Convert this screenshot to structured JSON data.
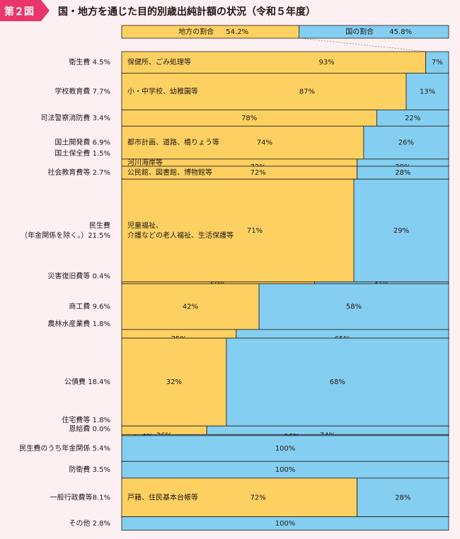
{
  "header": {
    "badge": "第２図",
    "title": "国・地方を通じた目的別歳出純計額の状況（令和５年度）"
  },
  "colors": {
    "local": "#fcd162",
    "national": "#84cff1",
    "badge": "#e8366a",
    "background": "#fdf0f3",
    "border": "#231815"
  },
  "chart_data": {
    "type": "bar",
    "subtype": "mekko (variable-width 100% stacked bar)",
    "title": "国・地方を通じた目的別歳出純計額の状況（令和５年度）",
    "overall": {
      "local_label": "地方の割合",
      "local_share": "54.2%",
      "national_label": "国の割合",
      "national_share": "45.8%"
    },
    "series": [
      {
        "name": "地方",
        "color": "#fcd162"
      },
      {
        "name": "国",
        "color": "#84cff1"
      }
    ],
    "categories": [
      {
        "label": "衛生費 4.5%",
        "share_pct": 4.5,
        "local_pct": 93,
        "national_pct": 7,
        "note": "保健所、ごみ処理等",
        "local_text": "93%",
        "national_text": "7%"
      },
      {
        "label": "学校教育費 7.7%",
        "share_pct": 7.7,
        "local_pct": 87,
        "national_pct": 13,
        "note": "小・中学校、幼稚園等",
        "local_text": "87%",
        "national_text": "13%"
      },
      {
        "label": "司法警察消防費 3.4%",
        "share_pct": 3.4,
        "local_pct": 78,
        "national_pct": 22,
        "note": "",
        "local_text": "78%",
        "national_text": "22%"
      },
      {
        "label": "国土開発費 6.9%",
        "share_pct": 6.9,
        "local_pct": 74,
        "national_pct": 26,
        "note": "都市計画、道路、橋りょう等",
        "local_text": "74%",
        "national_text": "26%"
      },
      {
        "label": "国土保全費 1.5%",
        "share_pct": 1.5,
        "local_pct": 72,
        "national_pct": 28,
        "note": "河川海岸等",
        "local_text": "72%",
        "national_text": "28%"
      },
      {
        "label": "社会教育費等 2.7%",
        "share_pct": 2.7,
        "local_pct": 72,
        "national_pct": 28,
        "note": "公民館、図書館、博物館等",
        "local_text": "72%",
        "national_text": "28%"
      },
      {
        "label": "民生費",
        "label2": "（年金関係を除く。）21.5%",
        "share_pct": 21.5,
        "local_pct": 71,
        "national_pct": 29,
        "note": "児童福祉、",
        "note2": "介護などの老人福祉、生活保護等",
        "local_text": "71%",
        "national_text": "29%"
      },
      {
        "label": "災害復旧費等 0.4%",
        "share_pct": 0.4,
        "local_pct": 59,
        "national_pct": 41,
        "note": "",
        "local_text": "59%",
        "national_text": "41%"
      },
      {
        "label": "商工費 9.6%",
        "share_pct": 9.6,
        "local_pct": 42,
        "national_pct": 58,
        "note": "",
        "local_text": "42%",
        "national_text": "58%"
      },
      {
        "label": "農林水産業費 1.8%",
        "share_pct": 1.8,
        "local_pct": 35,
        "national_pct": 65,
        "note": "",
        "local_text": "35%",
        "national_text": "65%"
      },
      {
        "label": "公債費 18.4%",
        "share_pct": 18.4,
        "local_pct": 32,
        "national_pct": 68,
        "note": "",
        "local_text": "32%",
        "national_text": "68%"
      },
      {
        "label": "住宅費等 1.8%",
        "share_pct": 1.8,
        "local_pct": 26,
        "national_pct": 74,
        "note": "",
        "local_text": "26%",
        "national_text": "74%"
      },
      {
        "label": "恩給費 0.0%",
        "share_pct": 0.0,
        "local_pct": 4,
        "national_pct": 96,
        "note": "",
        "local_text": "4%",
        "national_text": "96%"
      },
      {
        "label": "民生費のうち年金関係 5.4%",
        "share_pct": 5.4,
        "local_pct": 0,
        "national_pct": 100,
        "note": "",
        "local_text": "",
        "national_text": "100%"
      },
      {
        "label": "防衛費 3.5%",
        "share_pct": 3.5,
        "local_pct": 0,
        "national_pct": 100,
        "note": "",
        "local_text": "",
        "national_text": "100%"
      },
      {
        "label": "一般行政費等8.1%",
        "share_pct": 8.1,
        "local_pct": 72,
        "national_pct": 28,
        "note": "戸籍、住民基本台帳等",
        "local_text": "72%",
        "national_text": "28%"
      },
      {
        "label": "その他 2.8%",
        "share_pct": 2.8,
        "local_pct": 0,
        "national_pct": 100,
        "note": "",
        "local_text": "",
        "national_text": "100%"
      }
    ]
  }
}
